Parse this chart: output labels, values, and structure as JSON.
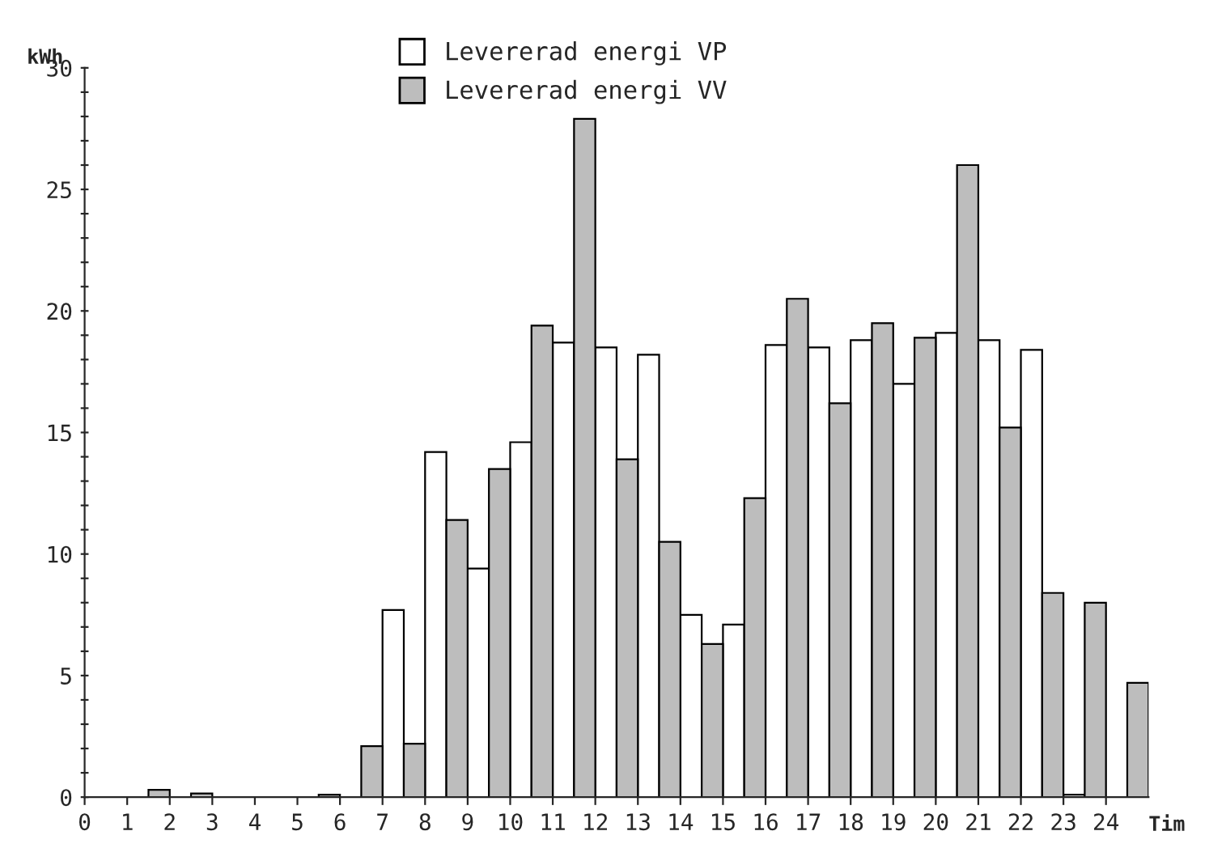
{
  "chart_data": {
    "type": "bar",
    "ylabel": "kWh",
    "xlabel": "Tim",
    "series": [
      {
        "name": "Levererad energi VP",
        "color": "#ffffff",
        "x": [
          0.25,
          1.25,
          2.25,
          3.25,
          4.25,
          5.25,
          6.25,
          7.25,
          8.25,
          9.25,
          10.25,
          11.25,
          12.25,
          13.25,
          14.25,
          15.25,
          16.25,
          17.25,
          18.25,
          19.25,
          20.25,
          21.25,
          22.25,
          23.25,
          24.25
        ],
        "values": [
          0,
          0,
          0,
          0,
          0,
          0,
          0,
          7.7,
          14.2,
          9.4,
          14.6,
          18.7,
          18.5,
          18.2,
          7.5,
          7.1,
          18.6,
          18.5,
          18.8,
          17.0,
          19.1,
          18.8,
          18.4,
          0.1,
          0
        ]
      },
      {
        "name": "Levererad energi VV",
        "color": "#bdbdbd",
        "x": [
          0.75,
          1.75,
          2.75,
          3.75,
          4.75,
          5.75,
          6.75,
          7.75,
          8.75,
          9.75,
          10.75,
          11.75,
          12.75,
          13.75,
          14.75,
          15.75,
          16.75,
          17.75,
          18.75,
          19.75,
          20.75,
          21.75,
          22.75,
          23.75,
          24.75
        ],
        "values": [
          0,
          0.3,
          0.15,
          0,
          0,
          0.1,
          2.1,
          2.2,
          11.4,
          13.5,
          19.4,
          27.9,
          13.9,
          10.5,
          6.3,
          12.3,
          20.5,
          16.2,
          19.5,
          18.9,
          26.0,
          15.2,
          8.4,
          8.0,
          4.7
        ]
      }
    ],
    "xlim": [
      0,
      25
    ],
    "xticks": [
      {
        "value": 0,
        "label": "0"
      },
      1,
      2,
      3,
      4,
      5,
      6,
      7,
      8,
      9,
      10,
      11,
      12,
      13,
      14,
      15,
      16,
      17,
      18,
      19,
      20,
      21,
      22,
      23,
      24
    ],
    "ylim": [
      0,
      30
    ],
    "yticks": [
      0,
      {
        "value": 1,
        "label": null
      },
      {
        "value": 2,
        "label": null
      },
      {
        "value": 3,
        "label": null
      },
      {
        "value": 4,
        "label": null
      },
      5,
      {
        "value": 6,
        "label": null
      },
      {
        "value": 7,
        "label": null
      },
      {
        "value": 8,
        "label": null
      },
      {
        "value": 9,
        "label": null
      },
      10,
      {
        "value": 11,
        "label": null
      },
      {
        "value": 12,
        "label": null
      },
      {
        "value": 13,
        "label": null
      },
      {
        "value": 14,
        "label": null
      },
      15,
      {
        "value": 16,
        "label": null
      },
      {
        "value": 17,
        "label": null
      },
      {
        "value": 18,
        "label": null
      },
      {
        "value": 19,
        "label": null
      },
      20,
      {
        "value": 21,
        "label": null
      },
      {
        "value": 22,
        "label": null
      },
      {
        "value": 23,
        "label": null
      },
      {
        "value": 24,
        "label": null
      },
      25,
      {
        "value": 26,
        "label": null
      },
      {
        "value": 27,
        "label": null
      },
      {
        "value": 28,
        "label": null
      },
      {
        "value": 29,
        "label": null
      },
      30
    ],
    "grid": false,
    "legend": "top"
  }
}
